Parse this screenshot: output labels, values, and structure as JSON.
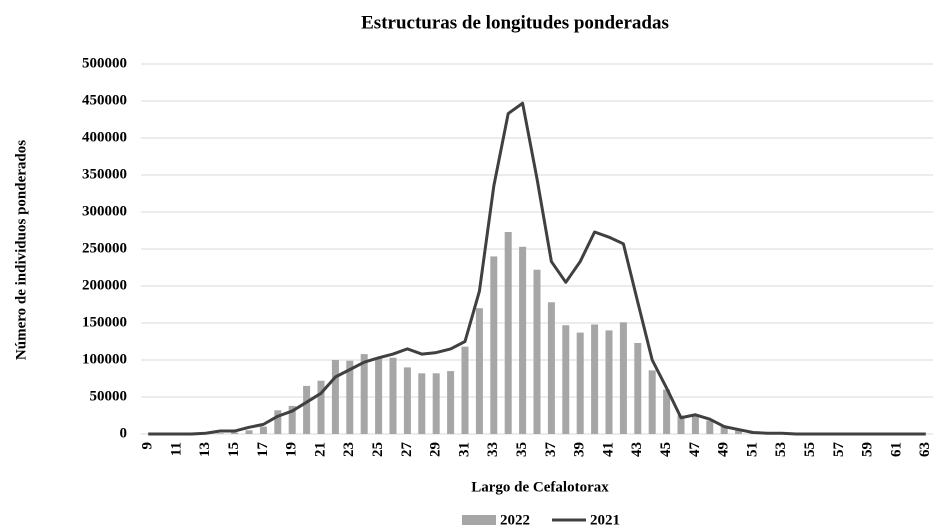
{
  "chart_data": {
    "type": "bar_line",
    "title": "Estructuras de longitudes ponderadas",
    "x_label": "Largo de Cefalotorax",
    "y_label": "Número de individuos ponderados",
    "categories": [
      "9",
      null,
      "11",
      null,
      "13",
      null,
      "15",
      null,
      "17",
      null,
      "19",
      null,
      "21",
      null,
      "23",
      null,
      "25",
      null,
      "27",
      null,
      "29",
      null,
      "31",
      null,
      "33",
      null,
      "35",
      null,
      "37",
      null,
      "39",
      null,
      "41",
      null,
      "43",
      null,
      "45",
      null,
      "47",
      null,
      "49",
      null,
      "51",
      null,
      "53",
      null,
      "55",
      null,
      "57",
      null,
      "59",
      null,
      "61",
      null,
      "63"
    ],
    "series": [
      {
        "name": "2022",
        "type": "bar",
        "color": "#a6a6a6",
        "values": [
          0,
          0,
          0,
          0,
          0,
          1000,
          2000,
          5000,
          10000,
          32000,
          38000,
          65000,
          72000,
          100000,
          99000,
          108000,
          102000,
          103000,
          90000,
          82000,
          82000,
          85000,
          118000,
          170000,
          240000,
          273000,
          253000,
          222000,
          178000,
          147000,
          137000,
          148000,
          140000,
          151000,
          123000,
          86000,
          60000,
          25000,
          25000,
          18000,
          10000,
          5000,
          2000,
          1000,
          0,
          0,
          0,
          0,
          0,
          0,
          0,
          0,
          0,
          0,
          0
        ]
      },
      {
        "name": "2021",
        "type": "line",
        "color": "#404040",
        "values": [
          0,
          0,
          0,
          0,
          1000,
          4000,
          4000,
          9000,
          13000,
          24000,
          31000,
          43000,
          55000,
          77000,
          87000,
          97000,
          103000,
          108000,
          115000,
          108000,
          110000,
          115000,
          125000,
          193000,
          335000,
          433000,
          447000,
          345000,
          233000,
          205000,
          233000,
          273000,
          266000,
          257000,
          178000,
          100000,
          62000,
          22000,
          26000,
          20000,
          10000,
          6000,
          2000,
          1000,
          1000,
          0,
          0,
          0,
          0,
          0,
          0,
          0,
          0,
          0,
          0
        ]
      }
    ],
    "ylim": [
      0,
      500000
    ],
    "yticks": [
      0,
      50000,
      100000,
      150000,
      200000,
      250000,
      300000,
      350000,
      400000,
      450000,
      500000
    ],
    "grid": true,
    "legend": "bottom"
  }
}
